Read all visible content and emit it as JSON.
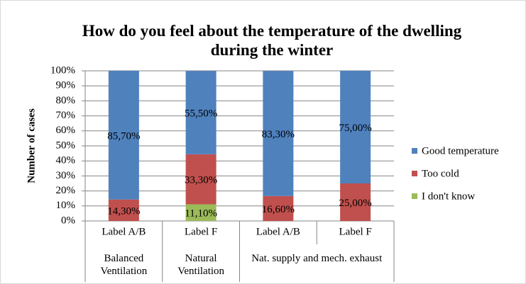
{
  "chart_data": {
    "type": "stacked_bar",
    "title": "How do you feel about the temperature of the dwelling during the winter",
    "y_label": "Number of cases",
    "groups": [
      {
        "name": "Balanced Ventilation",
        "categories": [
          "Label A/B"
        ]
      },
      {
        "name": "Natural Ventilation",
        "categories": [
          "Label F"
        ]
      },
      {
        "name": "Nat. supply and mech. exhaust",
        "categories": [
          "Label A/B",
          "Label F"
        ]
      }
    ],
    "series": [
      {
        "name": "I don't know",
        "color": "#9bbb59",
        "values": [
          null,
          11.1,
          null,
          null
        ],
        "value_labels": [
          null,
          "11,10%",
          null,
          null
        ]
      },
      {
        "name": "Too cold",
        "color": "#c0504d",
        "values": [
          14.3,
          33.3,
          16.6,
          25.0
        ],
        "value_labels": [
          "14,30%",
          "33,30%",
          "16,60%",
          "25,00%"
        ]
      },
      {
        "name": "Good temperature",
        "color": "#4f81bd",
        "values": [
          85.7,
          55.5,
          83.3,
          75.0
        ],
        "value_labels": [
          "85,70%",
          "55,50%",
          "83,30%",
          "75,00%"
        ]
      }
    ],
    "ylim": [
      0,
      100
    ],
    "yticks": [
      {
        "value": 0,
        "label": "0%"
      },
      {
        "value": 10,
        "label": "10%"
      },
      {
        "value": 20,
        "label": "20%"
      },
      {
        "value": 30,
        "label": "30%"
      },
      {
        "value": 40,
        "label": "40%"
      },
      {
        "value": 50,
        "label": "50%"
      },
      {
        "value": 60,
        "label": "60%"
      },
      {
        "value": 70,
        "label": "70%"
      },
      {
        "value": 80,
        "label": "80%"
      },
      {
        "value": 90,
        "label": "90%"
      },
      {
        "value": 100,
        "label": "100%"
      }
    ],
    "grid": true,
    "legend": "right"
  }
}
